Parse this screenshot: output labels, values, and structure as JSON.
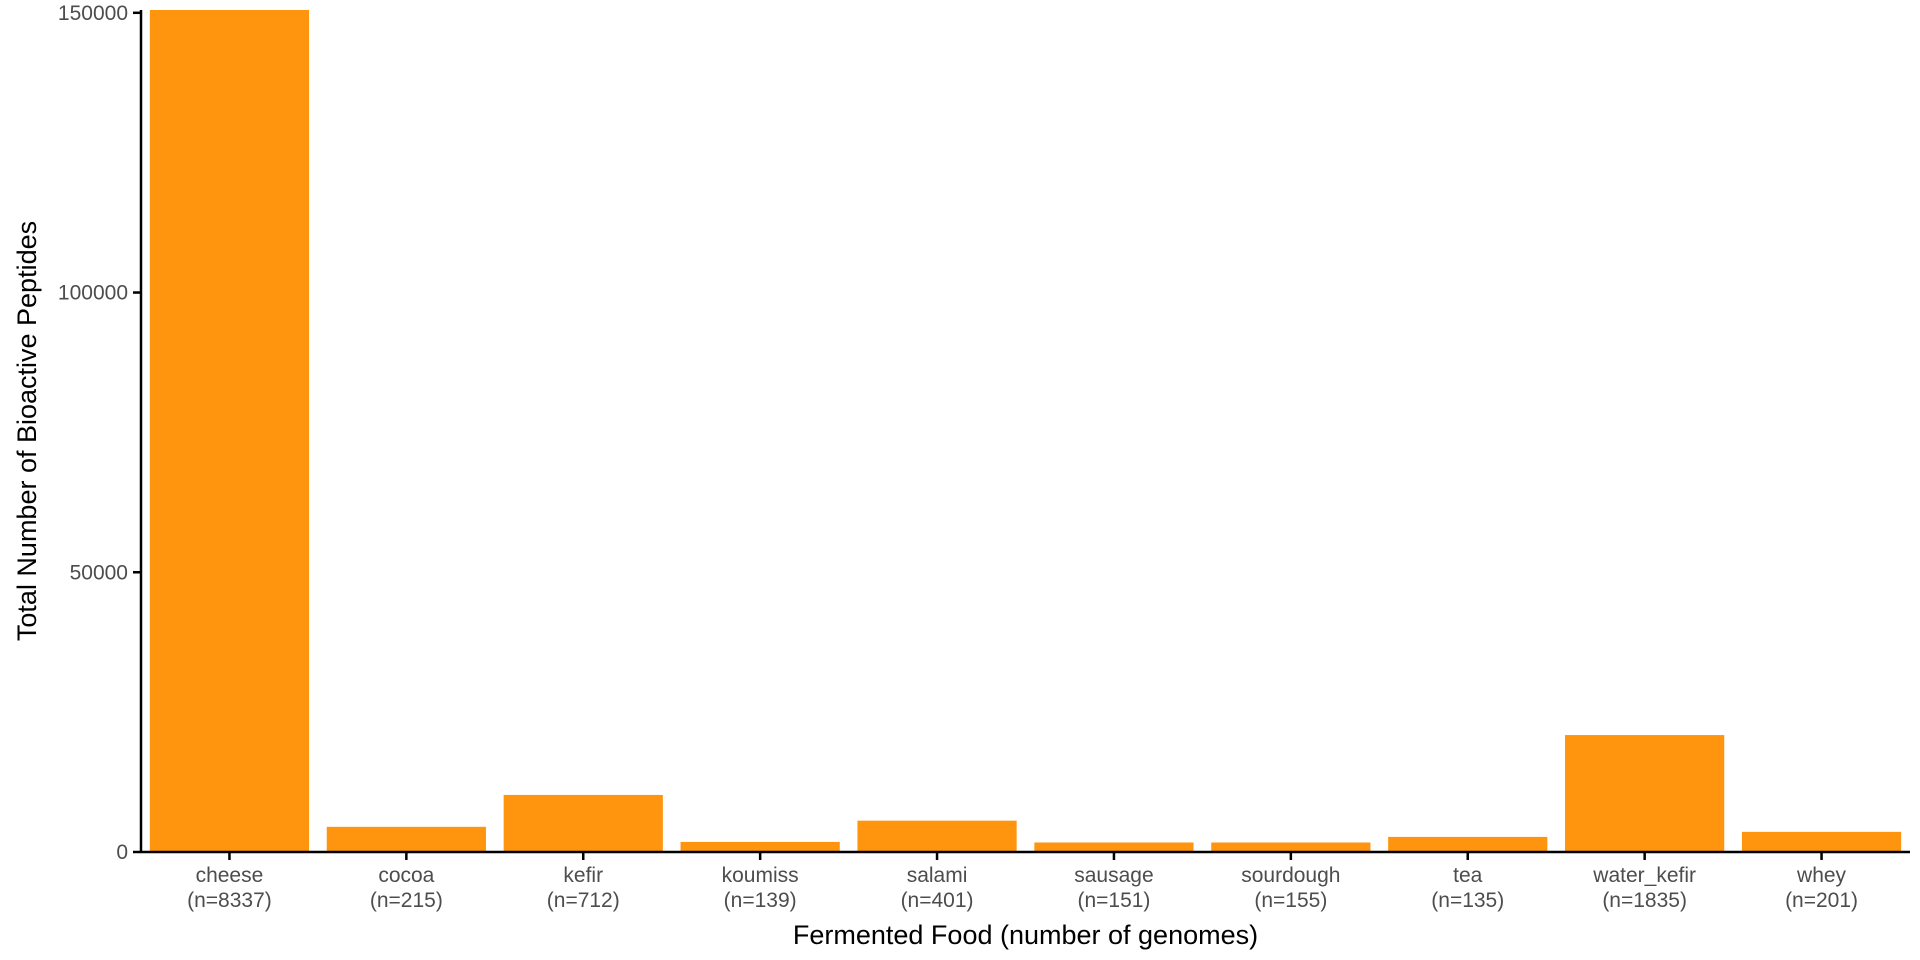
{
  "chart_data": {
    "type": "bar",
    "categories": [
      "cheese",
      "cocoa",
      "kefir",
      "koumiss",
      "salami",
      "sausage",
      "sourdough",
      "tea",
      "water_kefir",
      "whey"
    ],
    "category_counts": [
      "(n=8337)",
      "(n=215)",
      "(n=712)",
      "(n=139)",
      "(n=401)",
      "(n=151)",
      "(n=155)",
      "(n=135)",
      "(n=1835)",
      "(n=201)"
    ],
    "values": [
      150500,
      4500,
      10200,
      1800,
      5600,
      1700,
      1700,
      2700,
      20900,
      3600
    ],
    "xlabel": "Fermented Food (number of genomes)",
    "ylabel": "Total Number of Bioactive Peptides",
    "ylim": [
      0,
      150500
    ],
    "yticks": [
      0,
      50000,
      100000,
      150000
    ],
    "ytick_labels": [
      "0",
      "50000",
      "100000",
      "150000"
    ],
    "bar_color": "#FF950E",
    "grid": false,
    "legend": "none"
  }
}
